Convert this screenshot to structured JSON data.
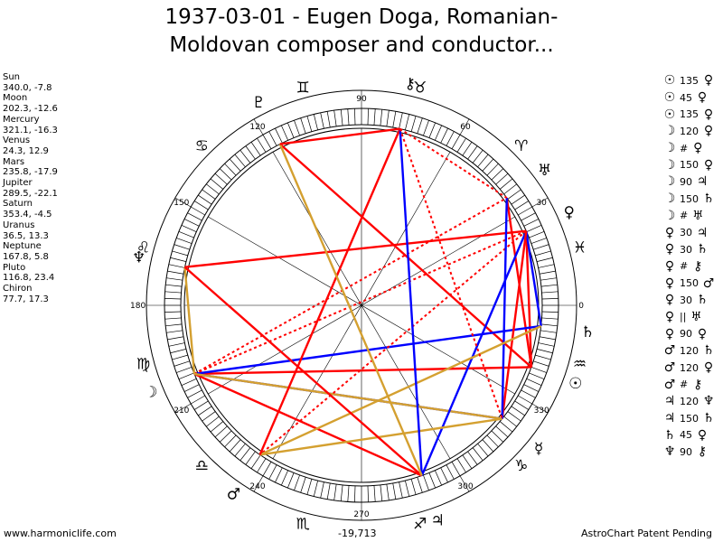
{
  "title": {
    "line1": "1937-03-01 - Eugen Doga, Romanian-",
    "line2": "Moldovan composer and conductor..."
  },
  "footer": {
    "site": "www.harmoniclife.com",
    "coordinate": "-19,713",
    "patent": "AstroChart Patent Pending"
  },
  "positions": [
    {
      "name": "Sun",
      "coords": "340.0, -7.8"
    },
    {
      "name": "Moon",
      "coords": "202.3, -12.6"
    },
    {
      "name": "Mercury",
      "coords": "321.1, -16.3"
    },
    {
      "name": "Venus",
      "coords": "24.3, 12.9"
    },
    {
      "name": "Mars",
      "coords": "235.8, -17.9"
    },
    {
      "name": "Jupiter",
      "coords": "289.5, -22.1"
    },
    {
      "name": "Saturn",
      "coords": "353.4, -4.5"
    },
    {
      "name": "Uranus",
      "coords": "36.5, 13.3"
    },
    {
      "name": "Neptune",
      "coords": "167.8, 5.8"
    },
    {
      "name": "Pluto",
      "coords": "116.8, 23.4"
    },
    {
      "name": "Chiron",
      "coords": "77.7, 17.3"
    }
  ],
  "aspects": [
    {
      "p1": "☉",
      "angle": "135",
      "p2": "♀"
    },
    {
      "p1": "☉",
      "angle": "45",
      "p2": "♀"
    },
    {
      "p1": "☉",
      "angle": "135",
      "p2": "♀"
    },
    {
      "p1": "☽",
      "angle": "120",
      "p2": "♀"
    },
    {
      "p1": "☽",
      "angle": "#",
      "p2": "♀"
    },
    {
      "p1": "☽",
      "angle": "150",
      "p2": "♀"
    },
    {
      "p1": "☽",
      "angle": "90",
      "p2": "♃"
    },
    {
      "p1": "☽",
      "angle": "150",
      "p2": "♄"
    },
    {
      "p1": "☽",
      "angle": "#",
      "p2": "♅"
    },
    {
      "p1": "♀",
      "angle": "30",
      "p2": "♃"
    },
    {
      "p1": "♀",
      "angle": "30",
      "p2": "♄"
    },
    {
      "p1": "♀",
      "angle": "#",
      "p2": "⚷"
    },
    {
      "p1": "♀",
      "angle": "150",
      "p2": "♂"
    },
    {
      "p1": "♀",
      "angle": "30",
      "p2": "♄"
    },
    {
      "p1": "♀",
      "angle": "||",
      "p2": "♅"
    },
    {
      "p1": "♀",
      "angle": "90",
      "p2": "♀"
    },
    {
      "p1": "♂",
      "angle": "120",
      "p2": "♄"
    },
    {
      "p1": "♂",
      "angle": "120",
      "p2": "♀"
    },
    {
      "p1": "♂",
      "angle": "#",
      "p2": "⚷"
    },
    {
      "p1": "♃",
      "angle": "120",
      "p2": "♆"
    },
    {
      "p1": "♃",
      "angle": "150",
      "p2": "♄"
    },
    {
      "p1": "♄",
      "angle": "45",
      "p2": "♀"
    },
    {
      "p1": "♆",
      "angle": "90",
      "p2": "⚷"
    }
  ],
  "chart_data": {
    "type": "astrological-wheel",
    "degree_labels": [
      "0",
      "30",
      "60",
      "90",
      "120",
      "150",
      "180",
      "210",
      "240",
      "270",
      "300",
      "330"
    ],
    "zodiac_signs": [
      {
        "glyph": "♓",
        "name": "pisces-sign"
      },
      {
        "glyph": "♈",
        "name": "aries-sign"
      },
      {
        "glyph": "♉",
        "name": "taurus-sign"
      },
      {
        "glyph": "♊",
        "name": "gemini-sign"
      },
      {
        "glyph": "♋",
        "name": "cancer-sign"
      },
      {
        "glyph": "♌",
        "name": "leo-sign"
      },
      {
        "glyph": "♍",
        "name": "virgo-sign"
      },
      {
        "glyph": "♎",
        "name": "libra-sign"
      },
      {
        "glyph": "♏",
        "name": "scorpio-sign"
      },
      {
        "glyph": "♐",
        "name": "sagittarius-sign"
      },
      {
        "glyph": "♑",
        "name": "capricorn-sign"
      },
      {
        "glyph": "♒",
        "name": "aquarius-sign"
      }
    ],
    "zodiac_mid_longitudes": [
      15,
      45,
      75,
      105,
      135,
      165,
      195,
      225,
      255,
      285,
      315,
      345
    ],
    "planets": [
      {
        "key": "sun",
        "glyph": "☉",
        "lon": 340.0
      },
      {
        "key": "moon",
        "glyph": "☽",
        "lon": 202.3
      },
      {
        "key": "mercury",
        "glyph": "☿",
        "lon": 321.1
      },
      {
        "key": "venus",
        "glyph": "♀",
        "lon": 24.3
      },
      {
        "key": "mars",
        "glyph": "♂",
        "lon": 235.8
      },
      {
        "key": "jupiter",
        "glyph": "♃",
        "lon": 289.5
      },
      {
        "key": "saturn",
        "glyph": "♄",
        "lon": 353.4
      },
      {
        "key": "uranus",
        "glyph": "♅",
        "lon": 36.5
      },
      {
        "key": "neptune",
        "glyph": "♆",
        "lon": 167.8
      },
      {
        "key": "pluto",
        "glyph": "♇",
        "lon": 116.8
      },
      {
        "key": "chiron",
        "glyph": "⚷",
        "lon": 77.7
      }
    ],
    "aspect_lines": [
      {
        "from": "sun",
        "to": "venus",
        "color": "#ff0000",
        "style": "solid"
      },
      {
        "from": "sun",
        "to": "pluto",
        "color": "#ff0000",
        "style": "solid"
      },
      {
        "from": "sun",
        "to": "uranus",
        "color": "#ff0000",
        "style": "solid"
      },
      {
        "from": "sun",
        "to": "moon",
        "color": "#ff0000",
        "style": "solid"
      },
      {
        "from": "moon",
        "to": "mercury",
        "color": "#0000ff",
        "style": "solid"
      },
      {
        "from": "moon",
        "to": "jupiter",
        "color": "#ff0000",
        "style": "solid"
      },
      {
        "from": "moon",
        "to": "saturn",
        "color": "#0000ff",
        "style": "solid"
      },
      {
        "from": "moon",
        "to": "venus",
        "color": "#ff0000",
        "style": "dotted"
      },
      {
        "from": "moon",
        "to": "uranus",
        "color": "#ff0000",
        "style": "dotted"
      },
      {
        "from": "moon",
        "to": "neptune",
        "color": "#d4a030",
        "style": "solid"
      },
      {
        "from": "moon",
        "to": "mercury",
        "color": "#d4a030",
        "style": "solid"
      },
      {
        "from": "venus",
        "to": "neptune",
        "color": "#ff0000",
        "style": "solid"
      },
      {
        "from": "venus",
        "to": "jupiter",
        "color": "#0000ff",
        "style": "solid"
      },
      {
        "from": "venus",
        "to": "saturn",
        "color": "#0000ff",
        "style": "solid"
      },
      {
        "from": "venus",
        "to": "mars",
        "color": "#ff0000",
        "style": "dotted"
      },
      {
        "from": "venus",
        "to": "mercury",
        "color": "#ff0000",
        "style": "solid"
      },
      {
        "from": "uranus",
        "to": "mercury",
        "color": "#0000ff",
        "style": "solid"
      },
      {
        "from": "mars",
        "to": "saturn",
        "color": "#d4a030",
        "style": "solid"
      },
      {
        "from": "mars",
        "to": "mercury",
        "color": "#d4a030",
        "style": "solid"
      },
      {
        "from": "mars",
        "to": "chiron",
        "color": "#ff0000",
        "style": "solid"
      },
      {
        "from": "jupiter",
        "to": "neptune",
        "color": "#ff0000",
        "style": "solid"
      },
      {
        "from": "jupiter",
        "to": "chiron",
        "color": "#0000ff",
        "style": "solid"
      },
      {
        "from": "pluto",
        "to": "jupiter",
        "color": "#d4a030",
        "style": "solid"
      },
      {
        "from": "pluto",
        "to": "chiron",
        "color": "#ff0000",
        "style": "solid"
      },
      {
        "from": "chiron",
        "to": "mercury",
        "color": "#ff0000",
        "style": "dotted"
      },
      {
        "from": "chiron",
        "to": "uranus",
        "color": "#ff0000",
        "style": "dotted"
      }
    ]
  }
}
